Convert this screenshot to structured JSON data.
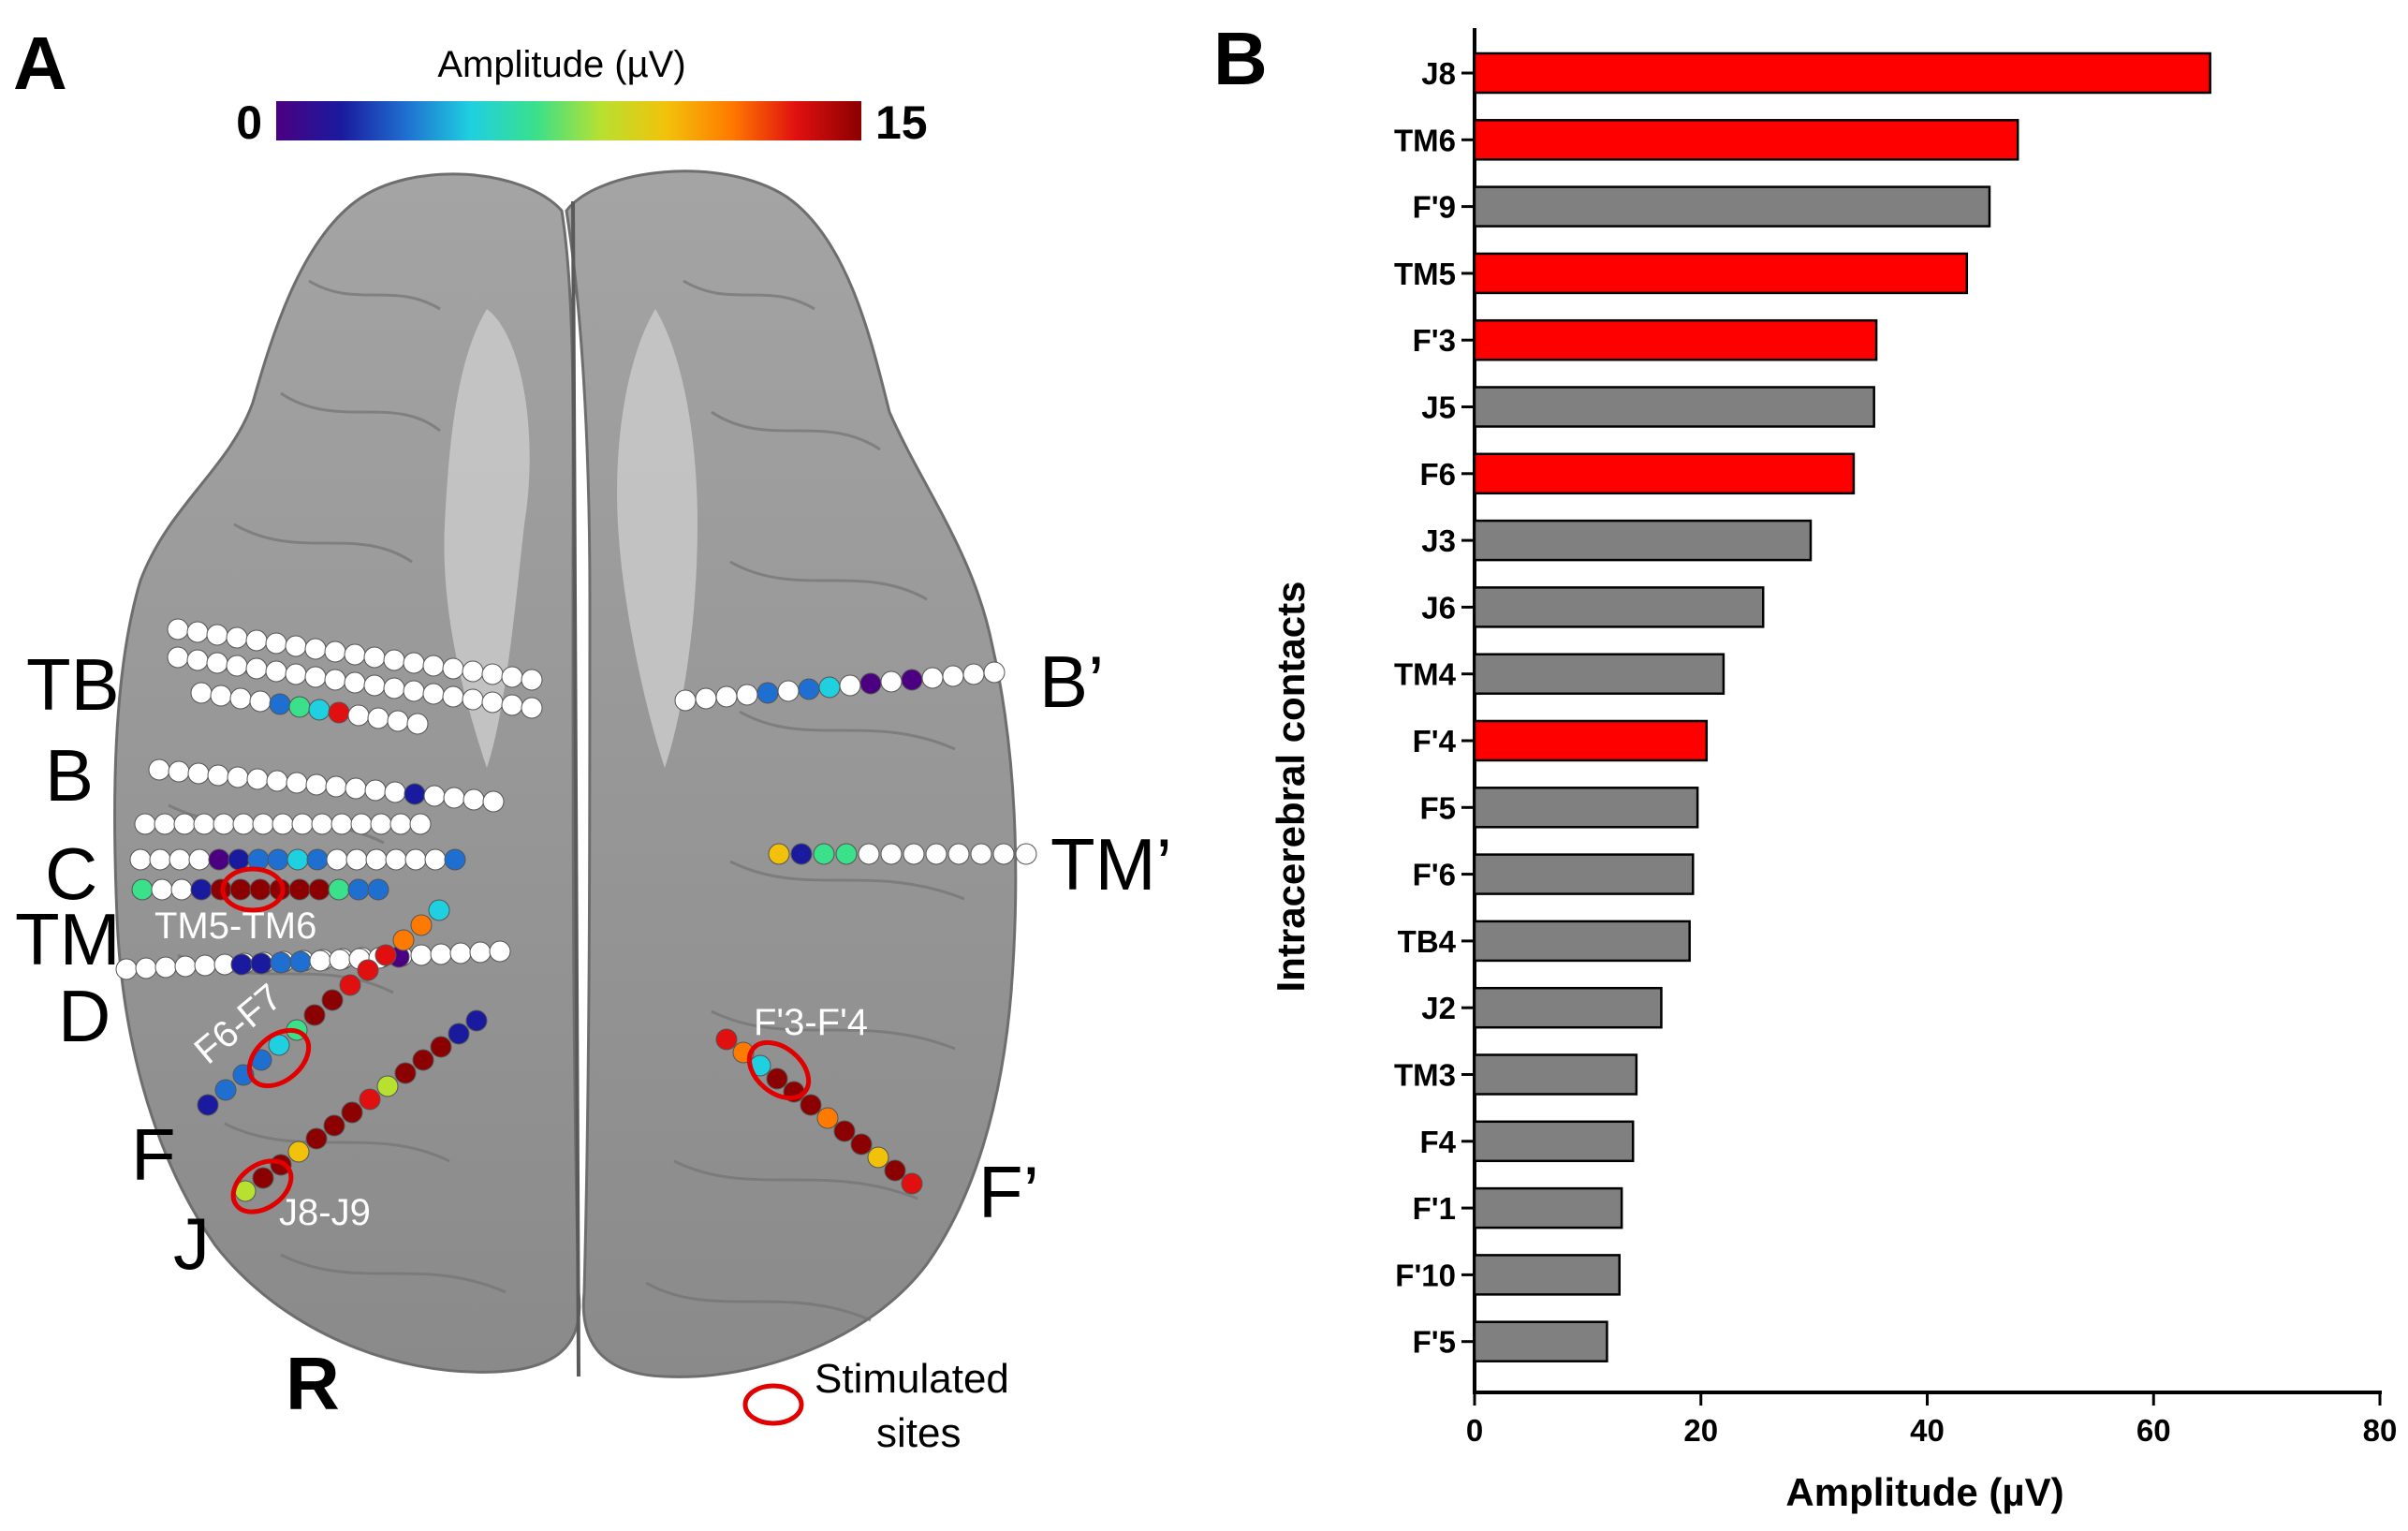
{
  "panel_a": {
    "letter": "A",
    "colorbar": {
      "title": "Amplitude (µV)",
      "min_label": "0",
      "max_label": "15",
      "colors": [
        "#4b0082",
        "#1a1a9e",
        "#1f6fd0",
        "#1fd0e0",
        "#3ae08a",
        "#b8e030",
        "#f2c20a",
        "#ff7a00",
        "#e01010",
        "#8b0000"
      ]
    },
    "electrode_names": [
      "TB",
      "B",
      "C",
      "TM",
      "D",
      "F",
      "J",
      "B’",
      "TM’",
      "F’"
    ],
    "stimulated_labels": [
      "TM5-TM6",
      "F6-F7",
      "J8-J9",
      "F'3-F'4"
    ],
    "hemisphere_label": "R",
    "legend_text_line1": "Stimulated",
    "legend_text_line2": "sites",
    "colors": {
      "brain": "#8d8d8d",
      "contact_default": "#ffffff",
      "stim_ring": "#e00000"
    }
  },
  "panel_b": {
    "letter": "B",
    "chart_data": {
      "type": "bar",
      "orientation": "horizontal",
      "categories": [
        "J8",
        "TM6",
        "F'9",
        "TM5",
        "F'3",
        "J5",
        "F6",
        "J3",
        "J6",
        "TM4",
        "F'4",
        "F5",
        "F'6",
        "TB4",
        "J2",
        "TM3",
        "F4",
        "F'1",
        "F'10",
        "F'5"
      ],
      "values": [
        65,
        48,
        45.5,
        43.5,
        35.5,
        35.3,
        33.5,
        29.7,
        25.5,
        22,
        20.5,
        19.7,
        19.3,
        19,
        16.5,
        14.3,
        14,
        13,
        12.8,
        11.7
      ],
      "stimulated": [
        true,
        true,
        false,
        true,
        true,
        false,
        true,
        false,
        false,
        false,
        true,
        false,
        false,
        false,
        false,
        false,
        false,
        false,
        false,
        false
      ],
      "xlabel": "Amplitude (µV)",
      "ylabel": "Intracerebral contacts",
      "xlim": [
        0,
        80
      ],
      "xticks": [
        0,
        20,
        40,
        60,
        80
      ],
      "colors": {
        "stimulated": "#ff0000",
        "other": "#808080"
      }
    }
  }
}
